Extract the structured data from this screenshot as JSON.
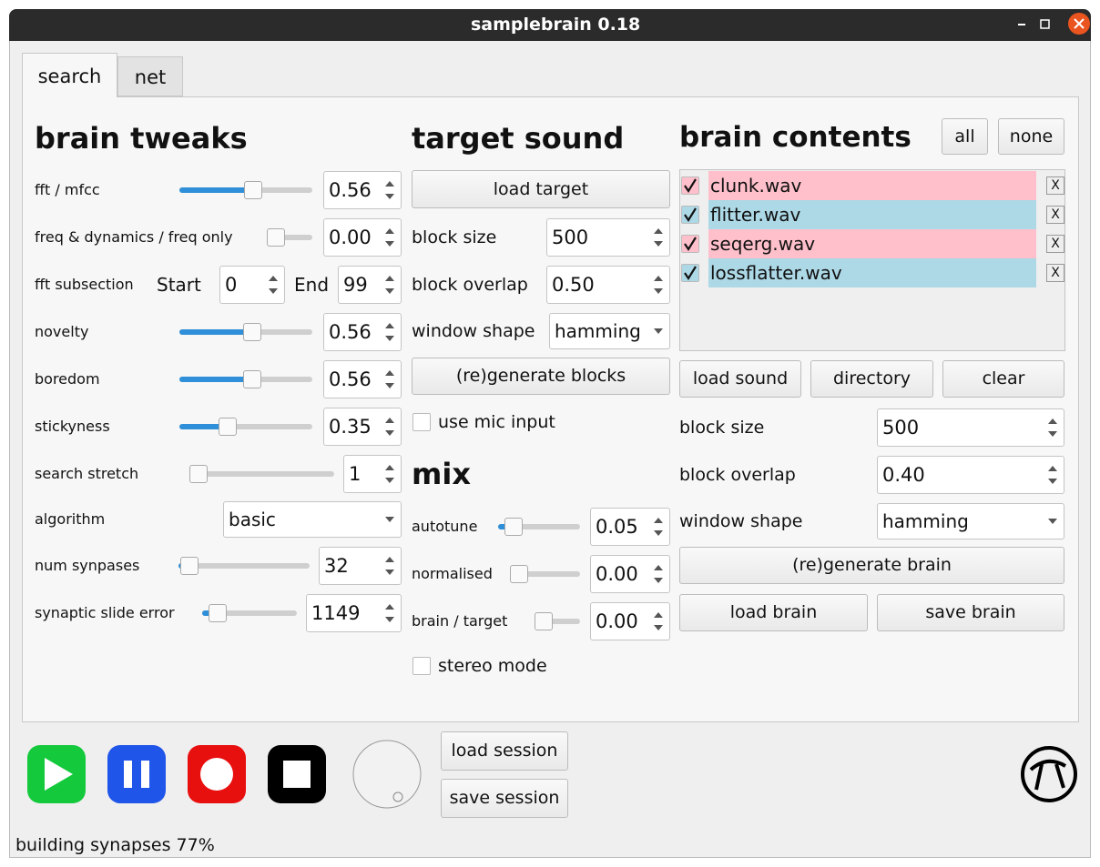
{
  "window": {
    "title": "samplebrain 0.18"
  },
  "tabs": [
    "search",
    "net"
  ],
  "tweaks": {
    "title": "brain tweaks",
    "fft_mfcc": {
      "label": "fft / mfcc",
      "value": "0.56"
    },
    "freq_dynamics": {
      "label": "freq & dynamics / freq only",
      "value": "0.00"
    },
    "fft_subsection": {
      "label": "fft subsection",
      "start_label": "Start",
      "start": "0",
      "end_label": "End",
      "end": "99"
    },
    "novelty": {
      "label": "novelty",
      "value": "0.56"
    },
    "boredom": {
      "label": "boredom",
      "value": "0.56"
    },
    "stickyness": {
      "label": "stickyness",
      "value": "0.35"
    },
    "search_stretch": {
      "label": "search stretch",
      "value": "1"
    },
    "algorithm": {
      "label": "algorithm",
      "value": "basic"
    },
    "num_synapses": {
      "label": "num synpases",
      "value": "32"
    },
    "synaptic_slide_error": {
      "label": "synaptic slide error",
      "value": "1149"
    }
  },
  "target": {
    "title": "target sound",
    "load": "load target",
    "block_size": {
      "label": "block size",
      "value": "500"
    },
    "block_overlap": {
      "label": "block overlap",
      "value": "0.50"
    },
    "window_shape": {
      "label": "window shape",
      "value": "hamming"
    },
    "regenerate": "(re)generate blocks",
    "mic": "use mic input"
  },
  "mix": {
    "title": "mix",
    "autotune": {
      "label": "autotune",
      "value": "0.05"
    },
    "normalised": {
      "label": "normalised",
      "value": "0.00"
    },
    "brain_target": {
      "label": "brain / target",
      "value": "0.00"
    },
    "stereo": "stereo mode"
  },
  "brain": {
    "title": "brain contents",
    "all": "all",
    "none": "none",
    "files": [
      {
        "name": "clunk.wav",
        "color": "#ffc0cb",
        "remove": "X"
      },
      {
        "name": "flitter.wav",
        "color": "#add8e6",
        "remove": "X"
      },
      {
        "name": "seqerg.wav",
        "color": "#ffc0cb",
        "remove": "X"
      },
      {
        "name": "lossflatter.wav",
        "color": "#add8e6",
        "remove": "X"
      }
    ],
    "load_sound": "load sound",
    "directory": "directory",
    "clear": "clear",
    "block_size": {
      "label": "block size",
      "value": "500"
    },
    "block_overlap": {
      "label": "block overlap",
      "value": "0.40"
    },
    "window_shape": {
      "label": "window shape",
      "value": "hamming"
    },
    "regenerate": "(re)generate brain",
    "load": "load brain",
    "save": "save brain"
  },
  "session": {
    "load": "load session",
    "save": "save session"
  },
  "status": "building synapses 77%"
}
